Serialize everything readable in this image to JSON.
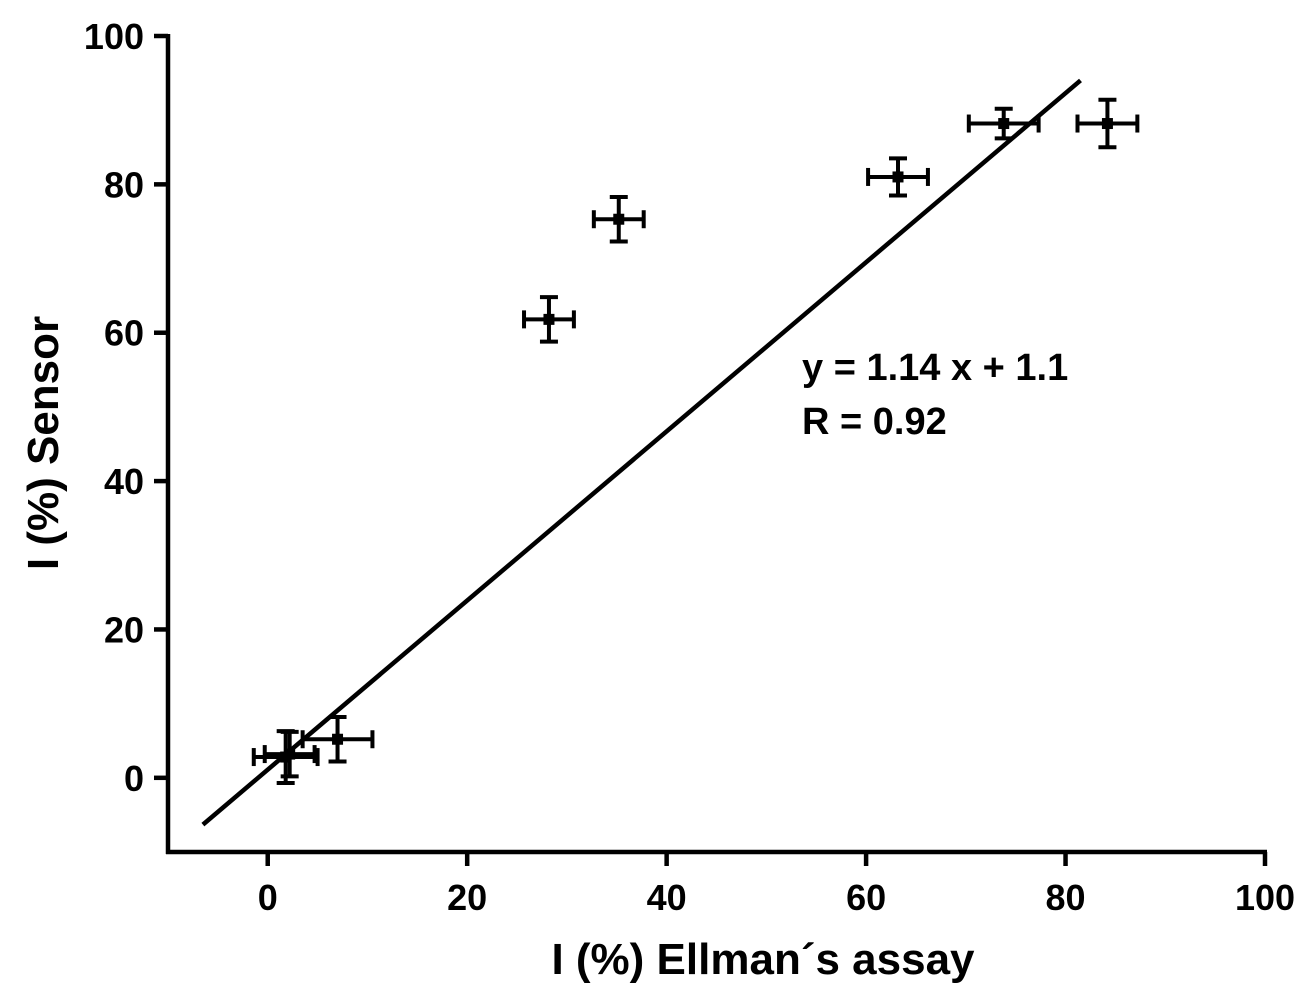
{
  "chart_data": {
    "type": "scatter",
    "title": "",
    "xlabel": "I (%) Ellman´s assay",
    "ylabel": "I (%) Sensor",
    "xlim": [
      -10,
      100
    ],
    "ylim": [
      -10,
      100
    ],
    "xticks": [
      0,
      20,
      40,
      60,
      80,
      100
    ],
    "yticks": [
      0,
      20,
      40,
      60,
      80,
      100
    ],
    "xtick_labels": [
      "0",
      "20",
      "40",
      "60",
      "80",
      "100"
    ],
    "ytick_labels": [
      "0",
      "20",
      "40",
      "60",
      "80",
      "100"
    ],
    "grid": false,
    "points": [
      {
        "x": 1.8,
        "y": 2.8,
        "xerr": 3.2,
        "yerr": 3.5
      },
      {
        "x": 2.2,
        "y": 3.2,
        "xerr": 2.5,
        "yerr": 3.0
      },
      {
        "x": 7.0,
        "y": 5.2,
        "xerr": 3.5,
        "yerr": 3.0
      },
      {
        "x": 28.2,
        "y": 61.8,
        "xerr": 2.5,
        "yerr": 3.0
      },
      {
        "x": 35.2,
        "y": 75.3,
        "xerr": 2.5,
        "yerr": 3.0
      },
      {
        "x": 63.2,
        "y": 81.0,
        "xerr": 3.0,
        "yerr": 2.5
      },
      {
        "x": 73.8,
        "y": 88.2,
        "xerr": 3.5,
        "yerr": 2.0
      },
      {
        "x": 84.2,
        "y": 88.2,
        "xerr": 3.0,
        "yerr": 3.2
      }
    ],
    "fit_line": {
      "slope": 1.14,
      "intercept": 1.1,
      "x_range": [
        -6.5,
        81.5
      ]
    },
    "annotations": [
      "y = 1.14 x + 1.1",
      "R = 0.92"
    ]
  }
}
